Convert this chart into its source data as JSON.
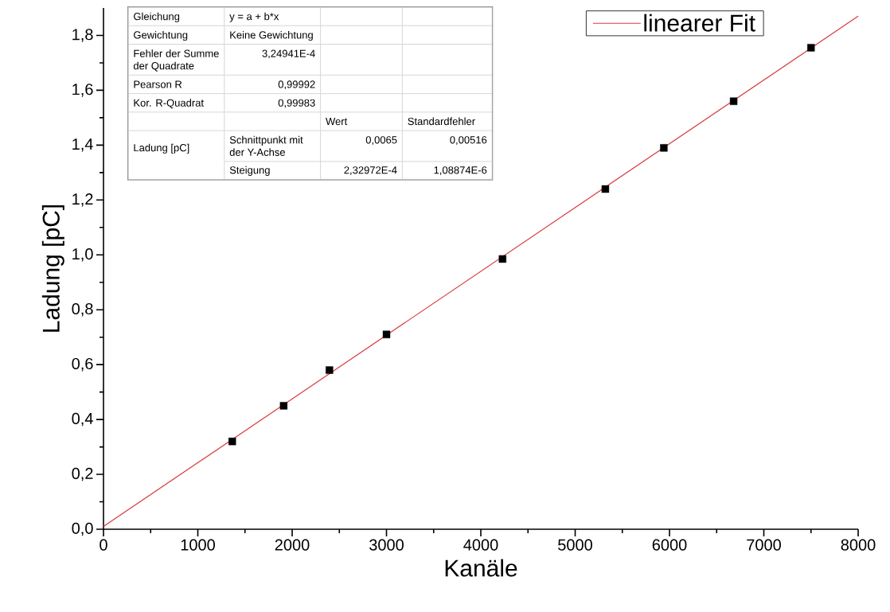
{
  "chart_data": {
    "type": "scatter",
    "xlabel": "Kanäle",
    "ylabel": "Ladung [pC]",
    "xlim": [
      0,
      8000
    ],
    "ylim": [
      0,
      1.9
    ],
    "xticks": [
      0,
      1000,
      2000,
      3000,
      4000,
      5000,
      6000,
      7000,
      8000
    ],
    "yticks": [
      {
        "value": 0,
        "label": "0,0"
      },
      {
        "value": 0.2,
        "label": "0,2"
      },
      {
        "value": 0.4,
        "label": "0,4"
      },
      {
        "value": 0.6,
        "label": "0,6"
      },
      {
        "value": 0.8,
        "label": "0,8"
      },
      {
        "value": 1.0,
        "label": "1,0"
      },
      {
        "value": 1.2,
        "label": "1,2"
      },
      {
        "value": 1.4,
        "label": "1,4"
      },
      {
        "value": 1.6,
        "label": "1,6"
      },
      {
        "value": 1.8,
        "label": "1,8"
      }
    ],
    "series": [
      {
        "type": "scatter",
        "color": "#000000",
        "marker": "square",
        "x": [
          1365,
          1910,
          2395,
          3000,
          4230,
          5320,
          5940,
          6680,
          7500
        ],
        "values": [
          0.32,
          0.45,
          0.58,
          0.71,
          0.985,
          1.24,
          1.39,
          1.56,
          1.755
        ]
      },
      {
        "type": "line",
        "name": "linearer Fit",
        "color": "#d93a3a",
        "marker": "none",
        "line_style": "solid",
        "x": [
          0,
          8000
        ],
        "values": [
          0.01,
          1.87
        ]
      }
    ],
    "legend": "top right",
    "grid": false,
    "annotations": [
      "Gleichung",
      "y = a + b*x",
      "Gewichtung",
      "Keine Gewichtung",
      "Fehler der Summe der Quadrate",
      "3,24941E-4",
      "Pearson R",
      "0,99992",
      "Kor. R-Quadrat",
      "0,99983",
      "Wert",
      "Standardfehler",
      "Ladung [pC]",
      "Schnittpunkt mit der Y-Achse",
      "0,0065",
      "0,00516",
      "Steigung",
      "2,32972E-4",
      "1,08874E-6"
    ]
  }
}
